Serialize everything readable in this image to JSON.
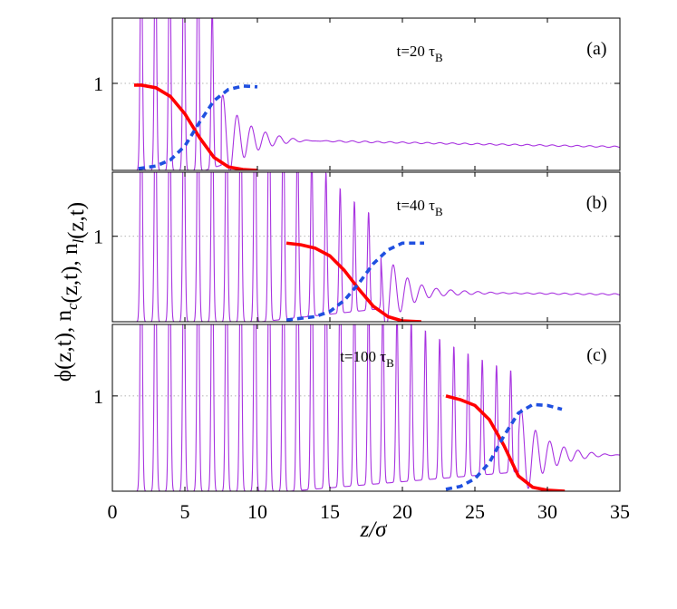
{
  "chart_data": {
    "type": "line",
    "xlabel": "z/σ",
    "ylabel": "ϕ(z,t),  n_c(z,t),  n_l(z,t)",
    "xlim": [
      0,
      35
    ],
    "xticks": [
      0,
      5,
      10,
      15,
      20,
      25,
      30,
      35
    ],
    "ytick_label": "1",
    "panels": [
      {
        "tag": "(a)",
        "time_main": "t=20 τ",
        "time_sub": "B",
        "ylim": [
          0,
          1.75
        ],
        "oscillation": {
          "start": 1.5,
          "period": 0.98,
          "n_full": 5,
          "front": 7.5,
          "decay": 1.6,
          "amp0": 1.75,
          "baseline_near": 0.38,
          "baseline_far": 0.27,
          "far_end": 35,
          "peak_cap": 1.75
        },
        "series": [
          {
            "name": "n_c",
            "color": "#ff0000",
            "style": "solid",
            "x": [
              1.5,
              2,
              3,
              4,
              5,
              6,
              7,
              8,
              9,
              10
            ],
            "y": [
              0.98,
              0.98,
              0.95,
              0.85,
              0.65,
              0.38,
              0.15,
              0.04,
              0.01,
              0.0
            ]
          },
          {
            "name": "n_l",
            "color": "#2050e0",
            "style": "dashed",
            "x": [
              1.8,
              3,
              4,
              5,
              6,
              7,
              8,
              9,
              10
            ],
            "y": [
              0.02,
              0.05,
              0.12,
              0.28,
              0.55,
              0.8,
              0.93,
              0.97,
              0.96
            ]
          }
        ]
      },
      {
        "tag": "(b)",
        "time_main": "t=40 τ",
        "time_sub": "B",
        "ylim": [
          0,
          1.75
        ],
        "oscillation": {
          "start": 1.5,
          "period": 0.98,
          "n_full": 9,
          "front": 18.5,
          "decay": 1.6,
          "amp0": 1.75,
          "baseline_near": 0.38,
          "baseline_far": 0.32,
          "far_end": 35,
          "peak_cap": 1.75
        },
        "series": [
          {
            "name": "n_c",
            "color": "#ff0000",
            "style": "solid",
            "x": [
              12,
              13,
              14,
              15,
              16,
              17,
              18,
              19,
              20,
              21.3
            ],
            "y": [
              0.92,
              0.9,
              0.86,
              0.77,
              0.6,
              0.38,
              0.18,
              0.06,
              0.01,
              0.0
            ]
          },
          {
            "name": "n_l",
            "color": "#2050e0",
            "style": "dashed",
            "x": [
              12,
              14,
              15,
              16,
              17,
              18,
              19,
              20,
              21.5
            ],
            "y": [
              0.02,
              0.06,
              0.12,
              0.25,
              0.45,
              0.68,
              0.84,
              0.92,
              0.92
            ]
          }
        ]
      },
      {
        "tag": "(c)",
        "time_main": "t=100 τ",
        "time_sub": "B",
        "ylim": [
          0,
          1.75
        ],
        "oscillation": {
          "start": 1.5,
          "period": 0.98,
          "n_full": 11,
          "front": 28.0,
          "decay": 1.6,
          "amp0": 1.75,
          "baseline_near": 0.38,
          "baseline_far": 0.38,
          "far_end": 35,
          "peak_cap": 1.75
        },
        "series": [
          {
            "name": "n_c",
            "color": "#ff0000",
            "style": "solid",
            "x": [
              23,
              24,
              25,
              26,
              27,
              28,
              29,
              30,
              31.2
            ],
            "y": [
              1.0,
              0.96,
              0.9,
              0.75,
              0.48,
              0.16,
              0.04,
              0.01,
              0.0
            ]
          },
          {
            "name": "n_l",
            "color": "#2050e0",
            "style": "dashed",
            "x": [
              23,
              24,
              25,
              26,
              27,
              28,
              29,
              30,
              31
            ],
            "y": [
              0.02,
              0.05,
              0.13,
              0.3,
              0.58,
              0.82,
              0.91,
              0.9,
              0.86
            ]
          }
        ]
      }
    ]
  }
}
